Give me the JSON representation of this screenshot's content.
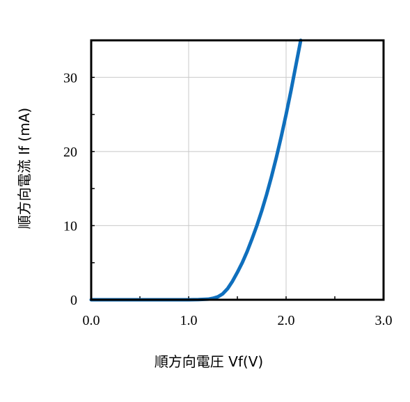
{
  "chart_data": {
    "type": "line",
    "xlabel": "順方向電圧 Vf(V)",
    "ylabel": "順方向電流 If (mA)",
    "xlim": [
      0,
      3
    ],
    "ylim": [
      0,
      35
    ],
    "x_ticks": [
      "0.0",
      "1.0",
      "2.0",
      "3.0"
    ],
    "y_ticks": [
      "0",
      "10",
      "20",
      "30"
    ],
    "x_tick_values": [
      0,
      1,
      2,
      3
    ],
    "y_tick_values": [
      0,
      10,
      20,
      30
    ],
    "grid": true,
    "series": [
      {
        "color": "#0f6fbd",
        "x": [
          0.0,
          0.5,
          1.0,
          1.1,
          1.2,
          1.25,
          1.3,
          1.35,
          1.4,
          1.45,
          1.5,
          1.55,
          1.6,
          1.65,
          1.7,
          1.75,
          1.8,
          1.85,
          1.9,
          1.95,
          2.0,
          2.05,
          2.1,
          2.15
        ],
        "y": [
          0.0,
          0.0,
          0.0,
          0.02,
          0.08,
          0.2,
          0.4,
          0.8,
          1.5,
          2.5,
          3.7,
          5.0,
          6.5,
          8.2,
          10.0,
          12.0,
          14.2,
          16.6,
          19.2,
          22.0,
          25.0,
          28.2,
          31.6,
          35.0
        ]
      }
    ]
  }
}
